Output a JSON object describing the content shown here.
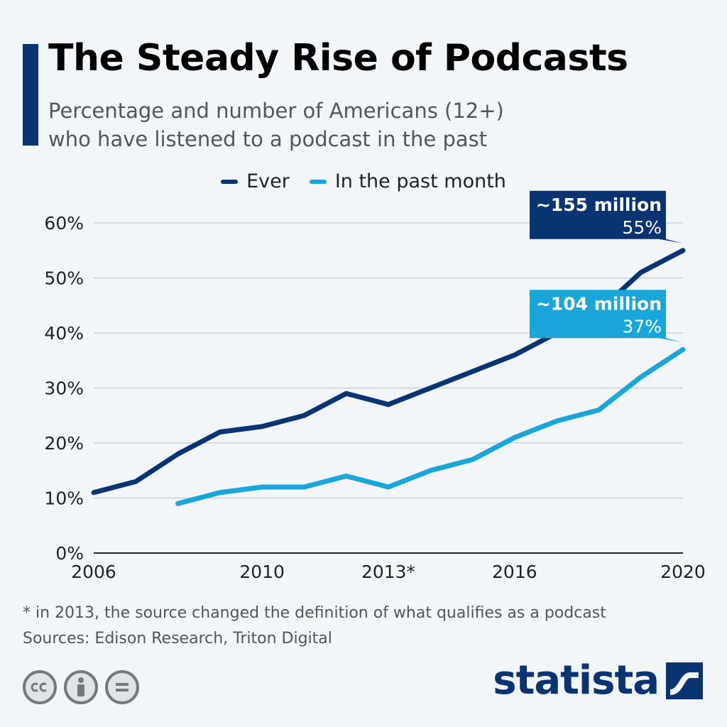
{
  "header": {
    "title": "The Steady Rise of Podcasts",
    "subtitle_line1": "Percentage and number of Americans (12+)",
    "subtitle_line2": "who have listened to a podcast in the past"
  },
  "colors": {
    "accent": "#0a3372",
    "ever": "#0a3372",
    "month": "#1aa6d8",
    "grid": "#c9d0d6"
  },
  "chart_data": {
    "type": "line",
    "x": [
      2006,
      2007,
      2008,
      2009,
      2010,
      2011,
      2012,
      2013,
      2014,
      2015,
      2016,
      2017,
      2018,
      2019,
      2020
    ],
    "x_tick_values": [
      2006,
      2010,
      2013,
      2016,
      2020
    ],
    "x_tick_labels": [
      "2006",
      "2010",
      "2013*",
      "2016",
      "2020"
    ],
    "y_ticks": [
      0,
      10,
      20,
      30,
      40,
      50,
      60
    ],
    "y_tick_labels": [
      "0%",
      "10%",
      "20%",
      "30%",
      "40%",
      "50%",
      "60%"
    ],
    "ylim": [
      0,
      60
    ],
    "xlim": [
      2006,
      2020
    ],
    "grid": true,
    "legend_position": "top-center",
    "series": [
      {
        "name": "Ever",
        "color": "#0a3372",
        "values": [
          11,
          13,
          18,
          22,
          23,
          25,
          29,
          27,
          30,
          33,
          36,
          40,
          44,
          51,
          55
        ]
      },
      {
        "name": "In the past month",
        "color": "#1aa6d8",
        "values": [
          null,
          null,
          9,
          11,
          12,
          12,
          14,
          12,
          15,
          17,
          21,
          24,
          26,
          32,
          37
        ]
      }
    ],
    "annotations": [
      {
        "series": "Ever",
        "line1": "~155 million",
        "line2": "55%"
      },
      {
        "series": "In the past month",
        "line1": "~104 million",
        "line2": "37%"
      }
    ]
  },
  "footer": {
    "note": "* in 2013, the source changed the definition of what qualifies as a podcast",
    "sources": "Sources: Edison Research, Triton Digital",
    "license_icons": [
      "cc-icon",
      "person-icon",
      "equals-icon"
    ],
    "brand": "statista"
  }
}
